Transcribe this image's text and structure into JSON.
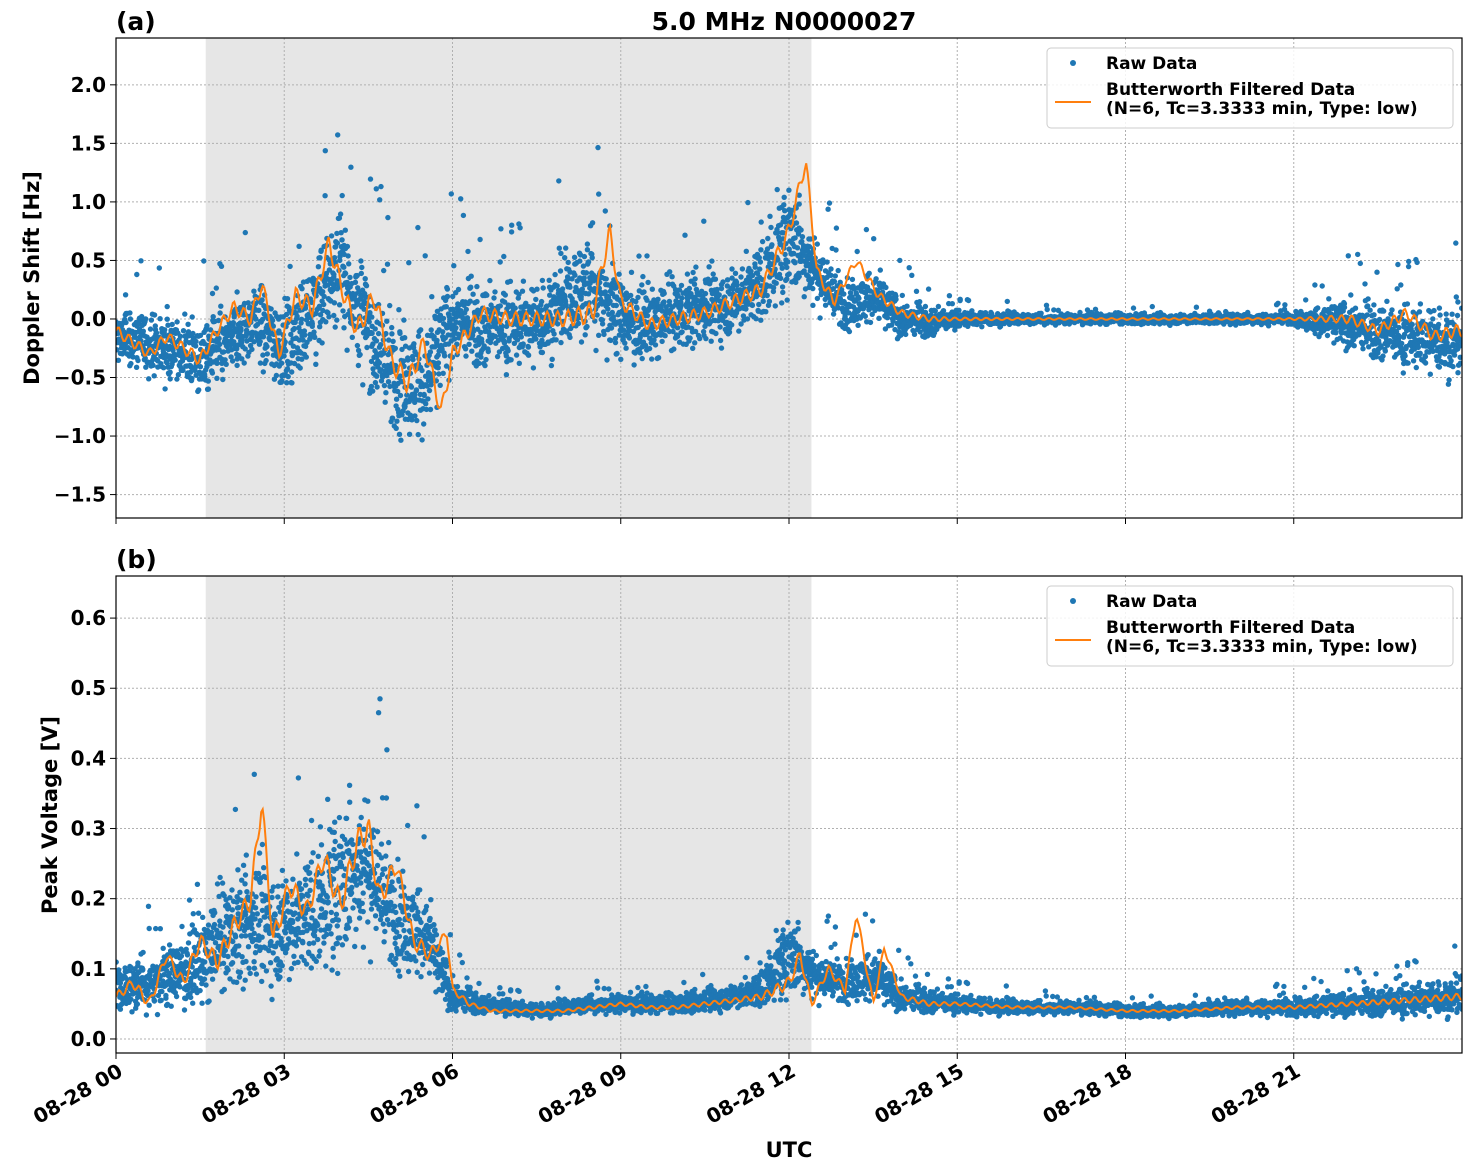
{
  "figure_title": "5.0 MHz N0000027",
  "chart_data": [
    {
      "type": "scatter",
      "panel_label": "(a)",
      "ylabel": "Doppler Shift [Hz]",
      "xlabel": "",
      "xlim": [
        0,
        24
      ],
      "ylim": [
        -1.7,
        2.4
      ],
      "yticks": [
        -1.5,
        -1.0,
        -0.5,
        0.0,
        0.5,
        1.0,
        1.5,
        2.0
      ],
      "ytick_labels": [
        "−1.5",
        "−1.0",
        "−0.5",
        "0.0",
        "0.5",
        "1.0",
        "1.5",
        "2.0"
      ],
      "xticks": [
        0,
        3,
        6,
        9,
        12,
        15,
        18,
        21
      ],
      "grid": true,
      "shaded_interval_hours": [
        1.6,
        12.4
      ],
      "legend_position": "top-right",
      "series": [
        {
          "name": "Raw Data",
          "kind": "points",
          "color": "#1f77b4",
          "x": [
            0.0,
            0.5,
            1.0,
            1.5,
            2.0,
            2.5,
            3.0,
            3.5,
            4.0,
            4.5,
            5.0,
            5.5,
            6.0,
            6.5,
            7.0,
            7.5,
            8.0,
            8.5,
            9.0,
            9.5,
            10.0,
            10.5,
            11.0,
            11.5,
            12.0,
            12.5,
            13.0,
            13.5,
            14.0,
            14.5,
            15.0,
            16.0,
            17.0,
            18.0,
            19.0,
            20.0,
            21.0,
            22.0,
            23.0,
            23.9
          ],
          "center": [
            -0.15,
            -0.2,
            -0.25,
            -0.35,
            -0.2,
            0.0,
            -0.25,
            0.1,
            0.45,
            -0.1,
            -0.5,
            -0.55,
            0.0,
            -0.05,
            -0.05,
            -0.05,
            0.15,
            0.3,
            0.0,
            -0.05,
            0.05,
            0.1,
            0.15,
            0.3,
            0.7,
            0.4,
            0.1,
            0.2,
            0.0,
            -0.02,
            0.0,
            0.0,
            0.0,
            0.0,
            0.0,
            0.0,
            0.0,
            -0.05,
            -0.15,
            -0.2
          ],
          "spread": [
            0.3,
            0.3,
            0.3,
            0.35,
            0.35,
            0.4,
            0.45,
            0.5,
            0.55,
            0.6,
            0.6,
            0.55,
            0.45,
            0.4,
            0.4,
            0.4,
            0.45,
            0.6,
            0.4,
            0.35,
            0.35,
            0.35,
            0.35,
            0.4,
            0.5,
            0.35,
            0.25,
            0.25,
            0.2,
            0.15,
            0.08,
            0.06,
            0.05,
            0.05,
            0.05,
            0.05,
            0.06,
            0.25,
            0.3,
            0.35
          ]
        },
        {
          "name": "Butterworth Filtered Data\n(N=6, Tc=3.3333 min, Type: low)",
          "kind": "line",
          "color": "#ff7f0e",
          "x": [
            0.0,
            0.3,
            0.6,
            0.9,
            1.2,
            1.5,
            1.8,
            2.1,
            2.4,
            2.6,
            2.9,
            3.2,
            3.5,
            3.8,
            4.0,
            4.3,
            4.6,
            4.9,
            5.2,
            5.5,
            5.8,
            6.0,
            6.5,
            7.0,
            7.5,
            8.0,
            8.5,
            8.8,
            9.0,
            9.5,
            10.0,
            10.5,
            11.0,
            11.5,
            12.0,
            12.3,
            12.5,
            12.8,
            13.2,
            13.6,
            14.0,
            14.5,
            15.0,
            16.0,
            17.0,
            18.0,
            19.0,
            20.0,
            21.0,
            22.0,
            22.5,
            23.0,
            23.5,
            23.9
          ],
          "y": [
            -0.1,
            -0.2,
            -0.3,
            -0.15,
            -0.25,
            -0.35,
            -0.1,
            0.1,
            0.0,
            0.3,
            -0.3,
            0.2,
            0.1,
            0.65,
            0.3,
            -0.1,
            0.2,
            -0.35,
            -0.55,
            -0.2,
            -0.8,
            -0.3,
            0.05,
            0.0,
            0.0,
            0.0,
            0.05,
            0.75,
            0.15,
            -0.05,
            0.0,
            0.05,
            0.15,
            0.25,
            0.75,
            1.35,
            0.4,
            0.15,
            0.5,
            0.2,
            0.05,
            0.0,
            0.0,
            0.0,
            0.0,
            0.0,
            0.0,
            0.0,
            0.0,
            0.0,
            -0.1,
            0.05,
            -0.15,
            -0.1
          ]
        }
      ]
    },
    {
      "type": "scatter",
      "panel_label": "(b)",
      "ylabel": "Peak Voltage [V]",
      "xlabel": "UTC",
      "xlim": [
        0,
        24
      ],
      "ylim": [
        -0.02,
        0.66
      ],
      "yticks": [
        0.0,
        0.1,
        0.2,
        0.3,
        0.4,
        0.5,
        0.6
      ],
      "ytick_labels": [
        "0.0",
        "0.1",
        "0.2",
        "0.3",
        "0.4",
        "0.5",
        "0.6"
      ],
      "xticks": [
        0,
        3,
        6,
        9,
        12,
        15,
        18,
        21
      ],
      "xtick_labels": [
        "08-28 00",
        "08-28 03",
        "08-28 06",
        "08-28 09",
        "08-28 12",
        "08-28 15",
        "08-28 18",
        "08-28 21"
      ],
      "grid": true,
      "shaded_interval_hours": [
        1.6,
        12.4
      ],
      "legend_position": "top-right",
      "series": [
        {
          "name": "Raw Data",
          "kind": "points",
          "color": "#1f77b4",
          "x": [
            0.0,
            0.5,
            1.0,
            1.5,
            2.0,
            2.5,
            3.0,
            3.5,
            4.0,
            4.5,
            5.0,
            5.5,
            6.0,
            6.5,
            7.0,
            7.5,
            8.0,
            8.5,
            9.0,
            9.5,
            10.0,
            10.5,
            11.0,
            11.5,
            12.0,
            12.5,
            13.0,
            13.5,
            14.0,
            14.5,
            15.0,
            16.0,
            17.0,
            18.0,
            19.0,
            20.0,
            21.0,
            22.0,
            23.0,
            23.9
          ],
          "center": [
            0.07,
            0.08,
            0.09,
            0.11,
            0.15,
            0.17,
            0.16,
            0.18,
            0.22,
            0.25,
            0.17,
            0.15,
            0.06,
            0.05,
            0.045,
            0.04,
            0.045,
            0.05,
            0.05,
            0.05,
            0.05,
            0.055,
            0.06,
            0.07,
            0.12,
            0.09,
            0.08,
            0.09,
            0.06,
            0.055,
            0.05,
            0.045,
            0.045,
            0.04,
            0.04,
            0.045,
            0.045,
            0.05,
            0.055,
            0.06
          ],
          "spread": [
            0.04,
            0.05,
            0.05,
            0.07,
            0.09,
            0.1,
            0.1,
            0.1,
            0.12,
            0.13,
            0.09,
            0.07,
            0.03,
            0.015,
            0.012,
            0.012,
            0.012,
            0.015,
            0.015,
            0.015,
            0.015,
            0.018,
            0.02,
            0.03,
            0.06,
            0.04,
            0.035,
            0.04,
            0.025,
            0.02,
            0.015,
            0.012,
            0.01,
            0.01,
            0.01,
            0.012,
            0.015,
            0.02,
            0.025,
            0.03
          ]
        },
        {
          "name": "Butterworth Filtered Data\n(N=6, Tc=3.3333 min, Type: low)",
          "kind": "line",
          "color": "#ff7f0e",
          "x": [
            0.0,
            0.3,
            0.6,
            0.9,
            1.2,
            1.5,
            1.8,
            2.1,
            2.4,
            2.6,
            2.8,
            3.1,
            3.4,
            3.7,
            4.0,
            4.3,
            4.5,
            4.7,
            5.0,
            5.3,
            5.6,
            5.9,
            6.0,
            6.3,
            6.7,
            7.0,
            7.5,
            8.0,
            8.5,
            9.0,
            9.5,
            10.0,
            10.5,
            11.0,
            11.5,
            12.0,
            12.2,
            12.4,
            12.7,
            13.0,
            13.2,
            13.5,
            13.7,
            14.0,
            14.5,
            15.0,
            16.0,
            17.0,
            18.0,
            19.0,
            20.0,
            21.0,
            22.0,
            23.0,
            23.9
          ],
          "y": [
            0.06,
            0.08,
            0.05,
            0.12,
            0.08,
            0.14,
            0.11,
            0.16,
            0.2,
            0.34,
            0.14,
            0.22,
            0.18,
            0.26,
            0.19,
            0.28,
            0.3,
            0.2,
            0.25,
            0.14,
            0.12,
            0.15,
            0.07,
            0.05,
            0.04,
            0.04,
            0.04,
            0.04,
            0.045,
            0.05,
            0.045,
            0.045,
            0.05,
            0.055,
            0.06,
            0.08,
            0.12,
            0.05,
            0.1,
            0.07,
            0.18,
            0.05,
            0.13,
            0.06,
            0.05,
            0.05,
            0.045,
            0.045,
            0.04,
            0.04,
            0.045,
            0.045,
            0.05,
            0.055,
            0.06
          ]
        }
      ]
    }
  ]
}
